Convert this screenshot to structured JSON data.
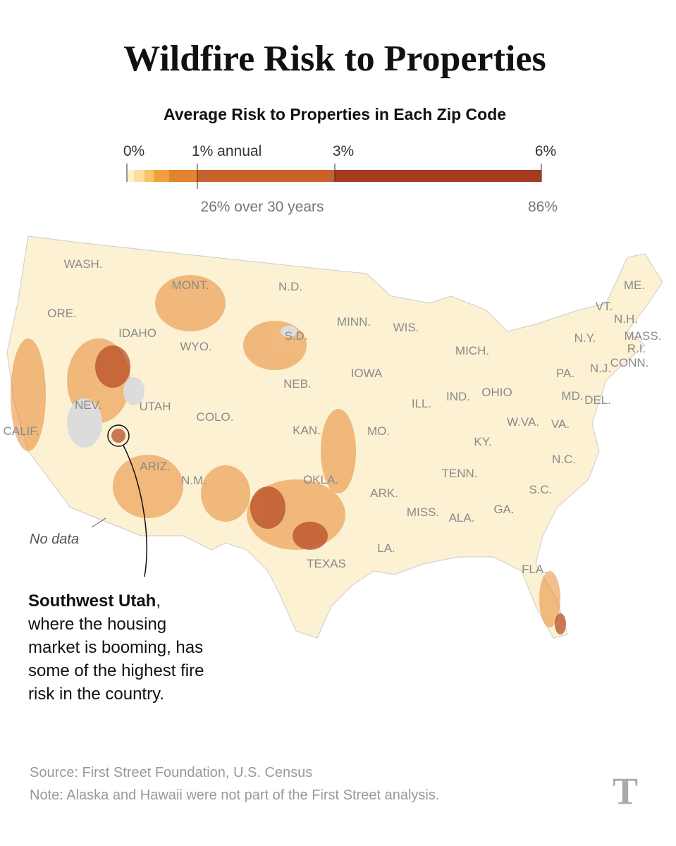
{
  "header": {
    "title": "Wildfire Risk to Properties"
  },
  "legend": {
    "title": "Average Risk to Properties in Each Zip Code",
    "top_labels": [
      "0%",
      "1% annual",
      "3%",
      "6%"
    ],
    "bottom_labels": [
      "26% over 30 years",
      "86%"
    ]
  },
  "map": {
    "state_labels": [
      "WASH.",
      "MONT.",
      "N.D.",
      "ORE.",
      "IDAHO",
      "WYO.",
      "S.D.",
      "MINN.",
      "WIS.",
      "MICH.",
      "ME.",
      "VT.",
      "N.H.",
      "MASS.",
      "N.Y.",
      "R.I.",
      "CONN.",
      "NEB.",
      "IOWA",
      "PA.",
      "N.J.",
      "NEV.",
      "UTAH",
      "COLO.",
      "ILL.",
      "IND.",
      "OHIO",
      "MD.",
      "DEL.",
      "CALIF.",
      "KAN.",
      "MO.",
      "W.VA.",
      "VA.",
      "KY.",
      "ARIZ.",
      "N.M.",
      "OKLA.",
      "TENN.",
      "N.C.",
      "ARK.",
      "S.C.",
      "MISS.",
      "ALA.",
      "GA.",
      "LA.",
      "TEXAS",
      "FLA."
    ],
    "no_data_label": "No data"
  },
  "annotation": {
    "bold": "Southwest Utah",
    "bold_suffix": ",",
    "lines": [
      "where the housing",
      "market is booming, has",
      "some of the highest fire",
      "risk in the country."
    ]
  },
  "footer": {
    "source": "Source: First Street Foundation, U.S. Census",
    "note": "Note: Alaska and Hawaii were not part of the First Street analysis.",
    "logo": "T"
  }
}
